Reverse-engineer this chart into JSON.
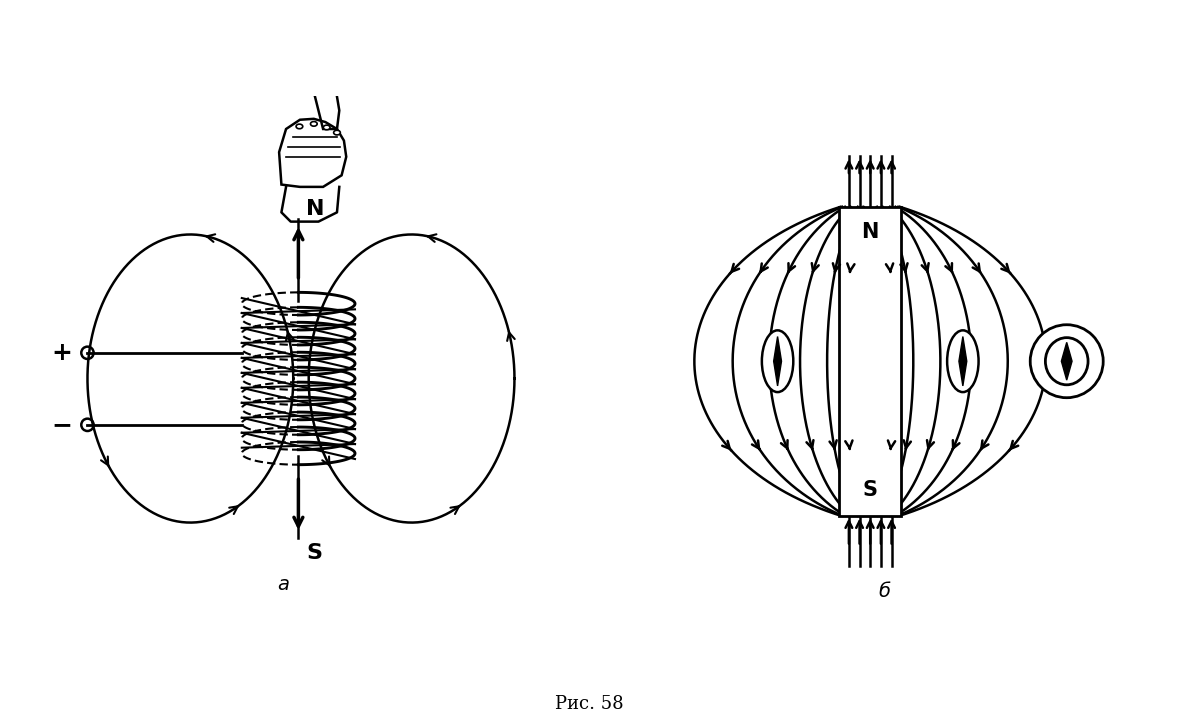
{
  "title": "Рис. 58",
  "label_a": "а",
  "label_b": "б",
  "bg_color": "#ffffff",
  "line_color": "#000000",
  "fig_width": 11.79,
  "fig_height": 7.2
}
